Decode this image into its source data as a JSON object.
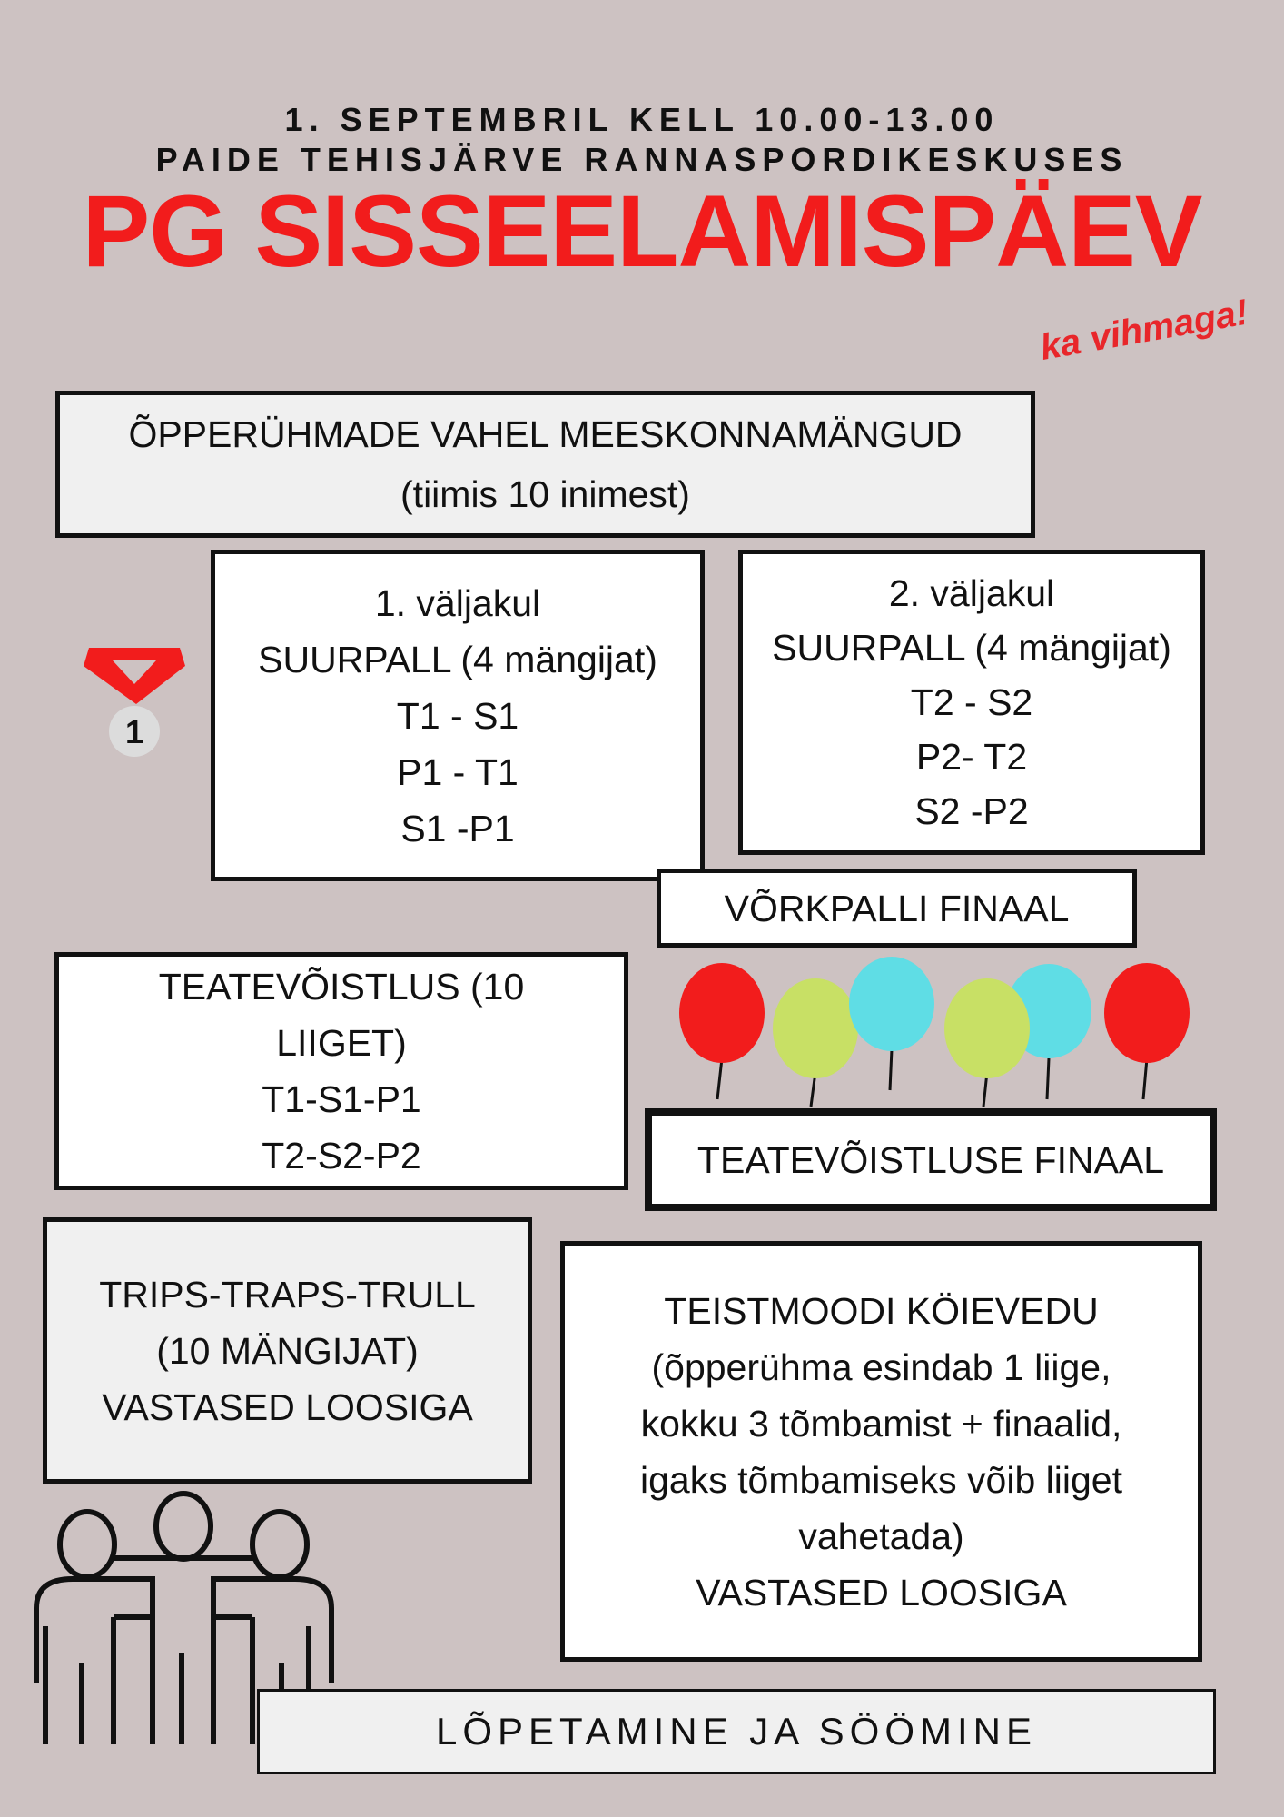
{
  "header": {
    "line1": "1. SEPTEMBRIL KELL 10.00-13.00",
    "line2": "PAIDE TEHISJÄRVE RANNASPORDIKESKUSES",
    "title": "PG SISSEELAMISPÄEV",
    "tagline": "ka vihmaga!"
  },
  "team_games": {
    "line1": "ÕPPERÜHMADE VAHEL MEESKONNAMÄNGUD",
    "line2": "(tiimis 10 inimest)"
  },
  "court1": {
    "lines": [
      "1. väljakul",
      "SUURPALL (4 mängijat)",
      "T1 - S1",
      "P1 - T1",
      "S1 -P1"
    ]
  },
  "court2": {
    "lines": [
      "2. väljakul",
      "SUURPALL (4 mängijat)",
      "T2 - S2",
      "P2- T2",
      "S2 -P2"
    ]
  },
  "volleyball_final": "VÕRKPALLI FINAAL",
  "relay": {
    "lines": [
      "TEATEVÕISTLUS (10",
      "LIIGET)",
      "T1-S1-P1",
      "T2-S2-P2"
    ]
  },
  "relay_final": "TEATEVÕISTLUSE FINAAL",
  "tictactoe": {
    "lines": [
      "TRIPS-TRAPS-TRULL",
      "(10 MÄNGIJAT)",
      "VASTASED LOOSIGA"
    ]
  },
  "tug_of_war": {
    "lines": [
      "TEISTMOODI KÖIEVEDU",
      "(õpperühma esindab 1 liige,",
      "kokku 3 tõmbamist + finaalid,",
      "igaks tõmbamiseks võib liiget",
      "vahetada)",
      "VASTASED LOOSIGA"
    ]
  },
  "closing": "LÕPETAMINE JA SÖÖMINE",
  "medal_number": "1",
  "colors": {
    "background": "#cdc2c2",
    "accent_red": "#f21c1c",
    "balloon_red": "#f21c1c",
    "balloon_green": "#c8e065",
    "balloon_cyan": "#5fdde5"
  }
}
